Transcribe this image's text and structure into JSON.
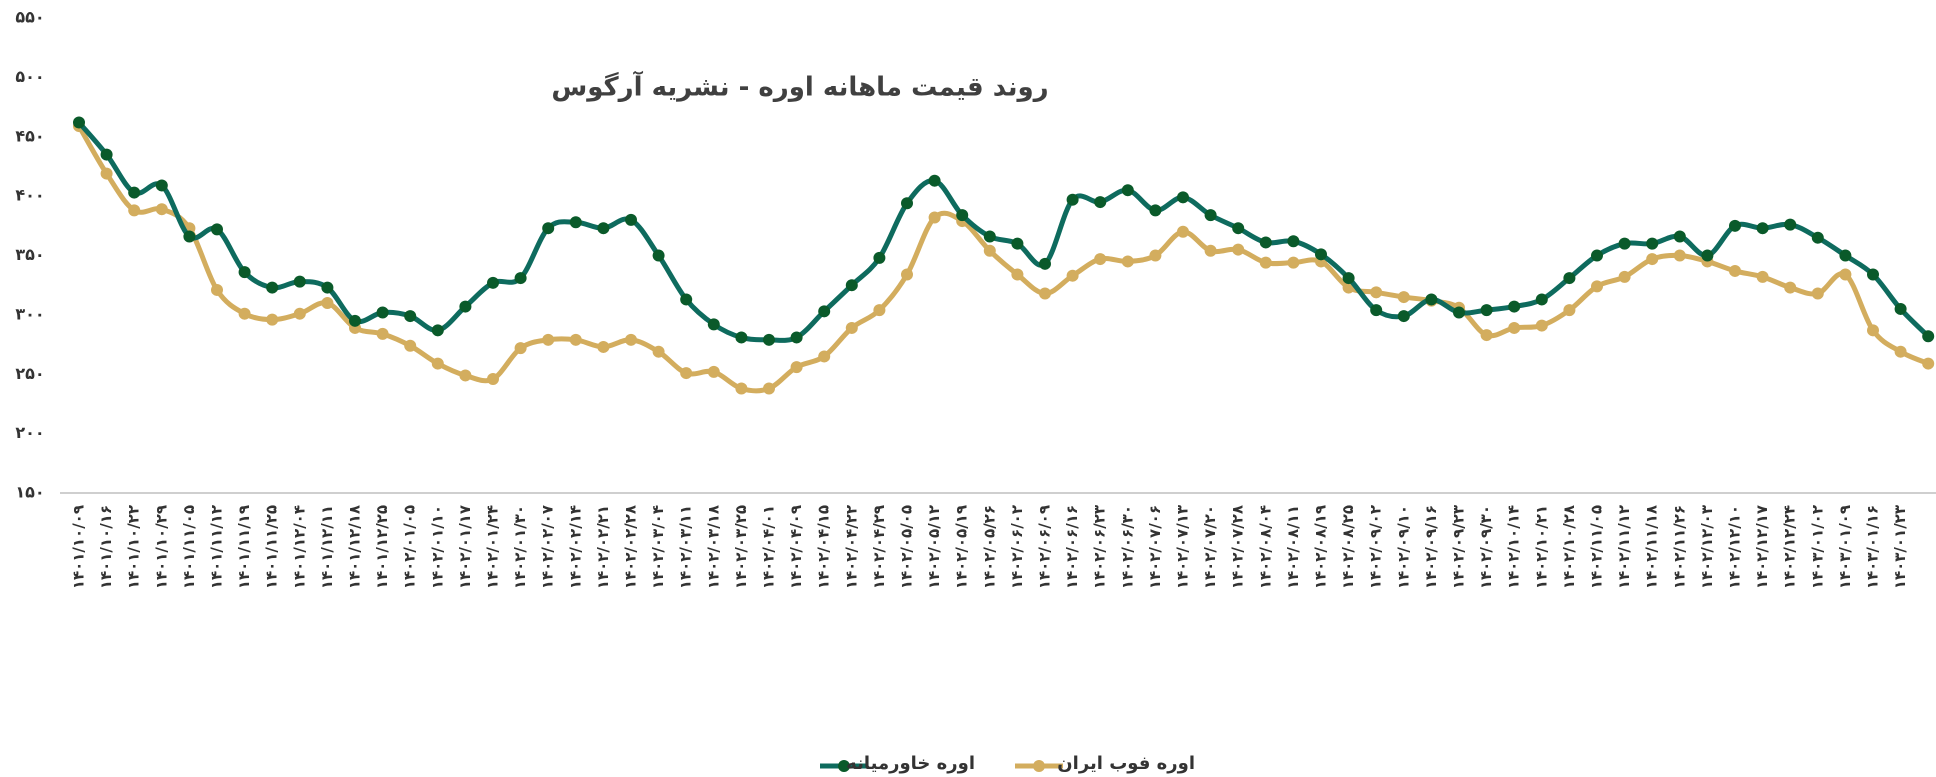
{
  "chart_data": {
    "type": "line",
    "title": "روند قیمت ماهانه اوره - نشریه آرگوس",
    "categories": [
      "۱۴۰۱/۱۰/۰۹",
      "۱۴۰۱/۱۰/۱۶",
      "۱۴۰۱/۱۰/۲۲",
      "۱۴۰۱/۱۰/۲۹",
      "۱۴۰۱/۱۱/۰۵",
      "۱۴۰۱/۱۱/۱۲",
      "۱۴۰۱/۱۱/۱۹",
      "۱۴۰۱/۱۱/۲۵",
      "۱۴۰۱/۱۲/۰۴",
      "۱۴۰۱/۱۲/۱۱",
      "۱۴۰۱/۱۲/۱۸",
      "۱۴۰۱/۱۲/۲۵",
      "۱۴۰۲/۰۱/۰۵",
      "۱۴۰۲/۰۱/۱۰",
      "۱۴۰۲/۰۱/۱۷",
      "۱۴۰۲/۰۱/۲۴",
      "۱۴۰۲/۰۱/۳۰",
      "۱۴۰۲/۰۲/۰۷",
      "۱۴۰۲/۰۲/۱۴",
      "۱۴۰۲/۰۲/۲۱",
      "۱۴۰۲/۰۲/۲۸",
      "۱۴۰۲/۰۳/۰۴",
      "۱۴۰۲/۰۳/۱۱",
      "۱۴۰۲/۰۳/۱۸",
      "۱۴۰۲/۰۳/۲۵",
      "۱۴۰۲/۰۴/۰۱",
      "۱۴۰۲/۰۴/۰۹",
      "۱۴۰۲/۰۴/۱۵",
      "۱۴۰۲/۰۴/۲۲",
      "۱۴۰۲/۰۴/۲۹",
      "۱۴۰۲/۰۵/۰۵",
      "۱۴۰۲/۰۵/۱۲",
      "۱۴۰۲/۰۵/۱۹",
      "۱۴۰۲/۰۵/۲۶",
      "۱۴۰۲/۰۶/۰۲",
      "۱۴۰۲/۰۶/۰۹",
      "۱۴۰۲/۰۶/۱۶",
      "۱۴۰۲/۰۶/۲۳",
      "۱۴۰۲/۰۶/۳۰",
      "۱۴۰۲/۰۷/۰۶",
      "۱۴۰۲/۰۷/۱۳",
      "۱۴۰۲/۰۷/۲۰",
      "۱۴۰۲/۰۷/۲۸",
      "۱۴۰۲/۰۸/۰۴",
      "۱۴۰۲/۰۸/۱۱",
      "۱۴۰۲/۰۸/۱۹",
      "۱۴۰۲/۰۸/۲۵",
      "۱۴۰۲/۰۹/۰۲",
      "۱۴۰۲/۰۹/۱۰",
      "۱۴۰۲/۰۹/۱۶",
      "۱۴۰۲/۰۹/۲۳",
      "۱۴۰۲/۰۹/۳۰",
      "۱۴۰۲/۱۰/۱۴",
      "۱۴۰۲/۱۰/۲۱",
      "۱۴۰۲/۱۰/۲۸",
      "۱۴۰۲/۱۱/۰۵",
      "۱۴۰۲/۱۱/۱۲",
      "۱۴۰۲/۱۱/۱۸",
      "۱۴۰۲/۱۱/۲۶",
      "۱۴۰۲/۱۲/۰۳",
      "۱۴۰۲/۱۲/۱۰",
      "۱۴۰۲/۱۲/۱۷",
      "۱۴۰۲/۱۲/۲۴",
      "۱۴۰۳/۰۱/۰۲",
      "۱۴۰۳/۰۱/۰۹",
      "۱۴۰۳/۰۱/۱۶",
      "۱۴۰۳/۰۱/۲۳",
      null
    ],
    "series": [
      {
        "name": "اوره خاورمیانه",
        "color": "#0e6b5e",
        "marker_color": "#0a5a2a",
        "values": [
          462,
          435,
          403,
          409,
          366,
          372,
          336,
          323,
          328,
          323,
          295,
          302,
          299,
          287,
          307,
          327,
          331,
          373,
          378,
          373,
          380,
          350,
          313,
          292,
          281,
          279,
          281,
          303,
          325,
          348,
          394,
          413,
          384,
          366,
          360,
          343,
          397,
          395,
          405,
          388,
          399,
          384,
          373,
          361,
          362,
          351,
          331,
          304,
          299,
          313,
          302,
          304,
          307,
          313,
          331,
          350,
          360,
          360,
          366,
          350,
          375,
          373,
          376,
          365,
          350,
          334,
          305,
          282
        ]
      },
      {
        "name": "اوره فوب ایران",
        "color": "#d3ad5e",
        "marker_color": "#d3ad5e",
        "values": [
          459,
          419,
          388,
          389,
          373,
          321,
          301,
          296,
          301,
          310,
          289,
          284,
          274,
          259,
          249,
          246,
          272,
          279,
          279,
          273,
          279,
          269,
          251,
          252,
          238,
          238,
          256,
          265,
          289,
          304,
          334,
          382,
          379,
          354,
          334,
          318,
          333,
          347,
          345,
          350,
          370,
          354,
          355,
          344,
          344,
          345,
          323,
          319,
          315,
          312,
          306,
          283,
          289,
          291,
          304,
          324,
          332,
          347,
          350,
          345,
          337,
          332,
          323,
          318,
          334,
          287,
          269,
          259
        ]
      }
    ],
    "ylim": [
      150,
      550
    ],
    "yticks": [
      {
        "value": 150,
        "label": "۱۵۰"
      },
      {
        "value": 200,
        "label": "۲۰۰"
      },
      {
        "value": 250,
        "label": "۲۵۰"
      },
      {
        "value": 300,
        "label": "۳۰۰"
      },
      {
        "value": 350,
        "label": "۳۵۰"
      },
      {
        "value": 400,
        "label": "۴۰۰"
      },
      {
        "value": 450,
        "label": "۴۵۰"
      },
      {
        "value": 500,
        "label": "۵۰۰"
      },
      {
        "value": 550,
        "label": "۵۵۰"
      }
    ],
    "grid": false,
    "legend": "bottom"
  }
}
